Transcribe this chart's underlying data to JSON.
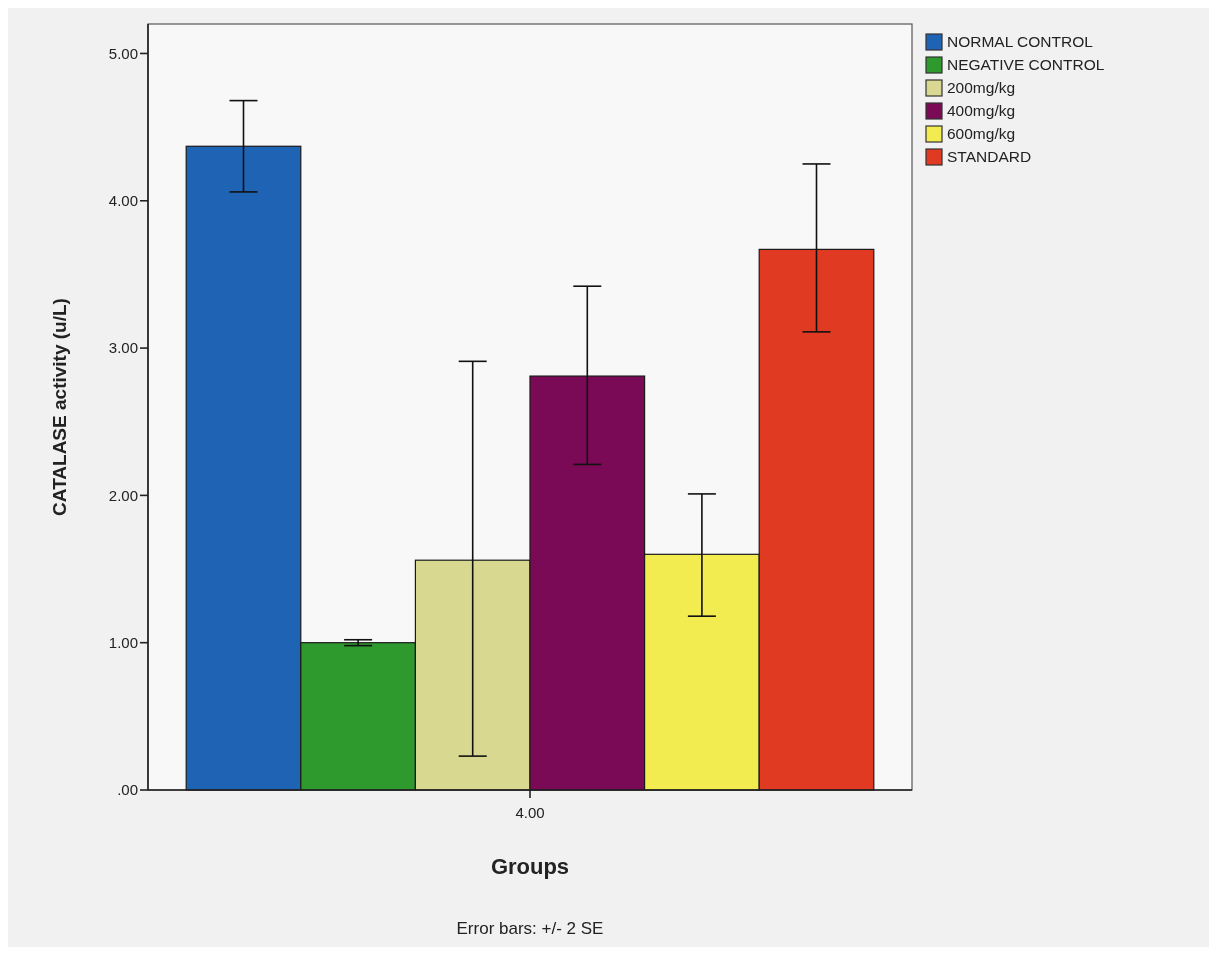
{
  "chart_data": {
    "type": "bar",
    "categories": [
      "4.00"
    ],
    "series": [
      {
        "name": "NORMAL CONTROL",
        "color": "#1f63b5",
        "values": [
          4.37
        ],
        "errors": [
          [
            4.06,
            4.68
          ]
        ]
      },
      {
        "name": "NEGATIVE CONTROL",
        "color": "#2e9a2e",
        "values": [
          1.0
        ],
        "errors": [
          [
            0.98,
            1.02
          ]
        ]
      },
      {
        "name": "200mg/kg",
        "color": "#d8d890",
        "values": [
          1.56
        ],
        "errors": [
          [
            0.23,
            2.91
          ]
        ]
      },
      {
        "name": "400mg/kg",
        "color": "#7a0a55",
        "values": [
          2.81
        ],
        "errors": [
          [
            2.21,
            3.42
          ]
        ]
      },
      {
        "name": "600mg/kg",
        "color": "#f2ec50",
        "values": [
          1.6
        ],
        "errors": [
          [
            1.18,
            2.01
          ]
        ]
      },
      {
        "name": "STANDARD",
        "color": "#e03a22",
        "values": [
          3.67
        ],
        "errors": [
          [
            3.11,
            4.25
          ]
        ]
      }
    ],
    "xlabel": "Groups",
    "ylabel": "CATALASE activity (u/L)",
    "annotations": [
      "Error bars: +/- 2 SE"
    ],
    "ylim": [
      0,
      5.2
    ],
    "yticks": [
      {
        "value": 0,
        "label": ".00"
      },
      {
        "value": 1,
        "label": "1.00"
      },
      {
        "value": 2,
        "label": "2.00"
      },
      {
        "value": 3,
        "label": "3.00"
      },
      {
        "value": 4,
        "label": "4.00"
      },
      {
        "value": 5,
        "label": "5.00"
      }
    ],
    "legend": "top right"
  }
}
